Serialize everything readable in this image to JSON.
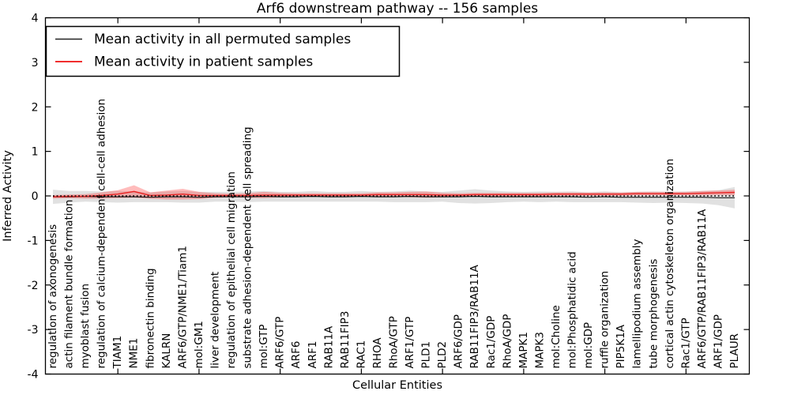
{
  "figure": {
    "title": "Arf6 downstream pathway -- 156 samples",
    "xlabel": "Cellular Entities",
    "ylabel": "Inferred Activity"
  },
  "legend": {
    "position": "upper left",
    "entries": [
      {
        "label": "Mean activity in all permuted samples",
        "color": "#222222"
      },
      {
        "label": "Mean activity in patient samples",
        "color": "#ee1111"
      }
    ]
  },
  "chart_data": {
    "type": "line",
    "title": "Arf6 downstream pathway -- 156 samples",
    "xlabel": "Cellular Entities",
    "ylabel": "Inferred Activity",
    "ylim": [
      -4,
      4
    ],
    "yticks": [
      -4,
      -3,
      -2,
      -1,
      0,
      1,
      2,
      3,
      4
    ],
    "ytick_labels": [
      "-4",
      "-3",
      "-2",
      "-1",
      "0",
      "1",
      "2",
      "3",
      "4"
    ],
    "grid": false,
    "legend_position": "upper left",
    "categories": [
      "regulation of axonogenesis",
      "actin filament bundle formation",
      "myoblast fusion",
      "regulation of calcium-dependent cell-cell adhesion",
      "TIAM1",
      "NME1",
      "fibronectin binding",
      "KALRN",
      "ARF6/GTP/NME1/Tiam1",
      "mol:GM1",
      "liver development",
      "regulation of epithelial cell migration",
      "substrate adhesion-dependent cell spreading",
      "mol:GTP",
      "ARF6/GTP",
      "ARF6",
      "ARF1",
      "RAB11A",
      "RAB11FIP3",
      "RAC1",
      "RHOA",
      "RhoA/GTP",
      "ARF1/GTP",
      "PLD1",
      "PLD2",
      "ARF6/GDP",
      "RAB11FIP3/RAB11A",
      "Rac1/GDP",
      "RhoA/GDP",
      "MAPK1",
      "MAPK3",
      "mol:Choline",
      "mol:Phosphatidic acid",
      "mol:GDP",
      "ruffle organization",
      "PIP5K1A",
      "lamellipodium assembly",
      "tube morphogenesis",
      "cortical actin cytoskeleton organization",
      "Rac1/GTP",
      "ARF6/GTP/RAB11FIP3/RAB11A",
      "ARF1/GDP",
      "PLAUR"
    ],
    "series": [
      {
        "name": "Mean activity in all permuted samples",
        "color": "#1a1a1a",
        "line_style": "solid",
        "band_color": "#888888",
        "band_opacity": 0.25,
        "values": [
          -0.02,
          -0.02,
          -0.01,
          -0.02,
          -0.02,
          -0.02,
          -0.03,
          -0.02,
          -0.02,
          -0.03,
          -0.02,
          -0.02,
          -0.02,
          -0.01,
          -0.02,
          -0.02,
          -0.01,
          -0.02,
          -0.02,
          -0.01,
          -0.02,
          -0.02,
          -0.01,
          -0.02,
          -0.02,
          -0.02,
          -0.01,
          -0.02,
          -0.02,
          -0.02,
          -0.02,
          -0.02,
          -0.02,
          -0.03,
          -0.02,
          -0.03,
          -0.03,
          -0.03,
          -0.03,
          -0.03,
          -0.03,
          -0.04,
          -0.04
        ],
        "band_halfwidth": [
          0.16,
          0.13,
          0.12,
          0.12,
          0.13,
          0.12,
          0.11,
          0.12,
          0.13,
          0.12,
          0.11,
          0.11,
          0.12,
          0.12,
          0.11,
          0.11,
          0.12,
          0.11,
          0.11,
          0.12,
          0.11,
          0.12,
          0.13,
          0.12,
          0.11,
          0.14,
          0.16,
          0.14,
          0.12,
          0.11,
          0.12,
          0.11,
          0.12,
          0.11,
          0.12,
          0.11,
          0.12,
          0.13,
          0.12,
          0.13,
          0.14,
          0.17,
          0.24
        ]
      },
      {
        "name": "Mean activity in patient samples",
        "color": "#e82222",
        "line_style": "solid",
        "band_color": "#ff3030",
        "band_opacity": 0.32,
        "values": [
          -0.02,
          -0.01,
          -0.01,
          0.01,
          0.04,
          0.1,
          0.01,
          0.02,
          0.04,
          0.01,
          0.01,
          0.01,
          0.01,
          0.02,
          0.02,
          0.02,
          0.02,
          0.02,
          0.02,
          0.02,
          0.03,
          0.03,
          0.03,
          0.03,
          0.02,
          0.02,
          0.03,
          0.03,
          0.03,
          0.03,
          0.03,
          0.04,
          0.04,
          0.04,
          0.04,
          0.04,
          0.05,
          0.05,
          0.05,
          0.05,
          0.06,
          0.07,
          0.08
        ],
        "band_halfwidth": [
          0.04,
          0.04,
          0.05,
          0.07,
          0.09,
          0.14,
          0.07,
          0.1,
          0.12,
          0.08,
          0.05,
          0.04,
          0.05,
          0.07,
          0.05,
          0.04,
          0.04,
          0.04,
          0.04,
          0.04,
          0.05,
          0.05,
          0.06,
          0.07,
          0.05,
          0.04,
          0.04,
          0.04,
          0.04,
          0.04,
          0.04,
          0.04,
          0.04,
          0.04,
          0.04,
          0.04,
          0.04,
          0.04,
          0.04,
          0.04,
          0.05,
          0.05,
          0.06
        ]
      }
    ],
    "reference_line": {
      "y": 0,
      "style": "dotted",
      "color": "#000000"
    }
  }
}
